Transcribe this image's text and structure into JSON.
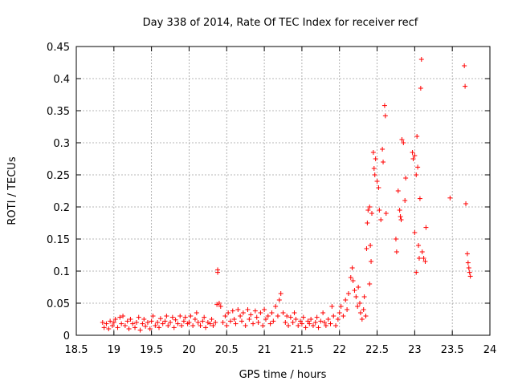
{
  "chart_data": {
    "type": "scatter",
    "title": "Day 338 of 2014, Rate Of TEC Index for receiver recf",
    "xlabel": "GPS time / hours",
    "ylabel": "ROTI / TECUs",
    "xlim": [
      18.5,
      24
    ],
    "ylim": [
      0,
      0.45
    ],
    "x_ticks": [
      "18.5",
      "19",
      "19.5",
      "20",
      "20.5",
      "21",
      "21.5",
      "22",
      "22.5",
      "23",
      "23.5",
      "24"
    ],
    "y_ticks": [
      "0",
      "0.05",
      "0.1",
      "0.15",
      "0.2",
      "0.25",
      "0.3",
      "0.35",
      "0.4",
      "0.45"
    ],
    "grid": true,
    "marker": "plus",
    "color": "#ff0000",
    "series": [
      {
        "name": "ROTI",
        "points": [
          [
            18.85,
            0.02
          ],
          [
            18.87,
            0.012
          ],
          [
            18.9,
            0.018
          ],
          [
            18.93,
            0.01
          ],
          [
            18.95,
            0.022
          ],
          [
            18.98,
            0.015
          ],
          [
            19.0,
            0.02
          ],
          [
            19.02,
            0.025
          ],
          [
            19.05,
            0.012
          ],
          [
            19.08,
            0.028
          ],
          [
            19.1,
            0.018
          ],
          [
            19.12,
            0.03
          ],
          [
            19.15,
            0.015
          ],
          [
            19.18,
            0.022
          ],
          [
            19.2,
            0.01
          ],
          [
            19.22,
            0.025
          ],
          [
            19.25,
            0.018
          ],
          [
            19.28,
            0.012
          ],
          [
            19.3,
            0.02
          ],
          [
            19.33,
            0.028
          ],
          [
            19.35,
            0.008
          ],
          [
            19.38,
            0.018
          ],
          [
            19.4,
            0.025
          ],
          [
            19.42,
            0.014
          ],
          [
            19.45,
            0.02
          ],
          [
            19.48,
            0.01
          ],
          [
            19.5,
            0.022
          ],
          [
            19.52,
            0.03
          ],
          [
            19.55,
            0.015
          ],
          [
            19.58,
            0.02
          ],
          [
            19.6,
            0.012
          ],
          [
            19.62,
            0.026
          ],
          [
            19.65,
            0.018
          ],
          [
            19.68,
            0.022
          ],
          [
            19.7,
            0.03
          ],
          [
            19.72,
            0.015
          ],
          [
            19.75,
            0.02
          ],
          [
            19.78,
            0.028
          ],
          [
            19.8,
            0.012
          ],
          [
            19.82,
            0.024
          ],
          [
            19.85,
            0.018
          ],
          [
            19.88,
            0.03
          ],
          [
            19.9,
            0.015
          ],
          [
            19.93,
            0.022
          ],
          [
            19.95,
            0.028
          ],
          [
            19.98,
            0.018
          ],
          [
            20.0,
            0.02
          ],
          [
            20.02,
            0.03
          ],
          [
            20.05,
            0.015
          ],
          [
            20.08,
            0.025
          ],
          [
            20.1,
            0.035
          ],
          [
            20.12,
            0.02
          ],
          [
            20.15,
            0.015
          ],
          [
            20.18,
            0.022
          ],
          [
            20.2,
            0.028
          ],
          [
            20.22,
            0.012
          ],
          [
            20.25,
            0.02
          ],
          [
            20.28,
            0.018
          ],
          [
            20.3,
            0.025
          ],
          [
            20.32,
            0.015
          ],
          [
            20.35,
            0.02
          ],
          [
            20.37,
            0.048
          ],
          [
            20.38,
            0.102
          ],
          [
            20.38,
            0.098
          ],
          [
            20.4,
            0.05
          ],
          [
            20.42,
            0.045
          ],
          [
            20.45,
            0.02
          ],
          [
            20.48,
            0.03
          ],
          [
            20.5,
            0.015
          ],
          [
            20.52,
            0.035
          ],
          [
            20.55,
            0.022
          ],
          [
            20.58,
            0.038
          ],
          [
            20.6,
            0.025
          ],
          [
            20.62,
            0.018
          ],
          [
            20.65,
            0.04
          ],
          [
            20.68,
            0.03
          ],
          [
            20.7,
            0.022
          ],
          [
            20.72,
            0.035
          ],
          [
            20.75,
            0.015
          ],
          [
            20.78,
            0.04
          ],
          [
            20.8,
            0.025
          ],
          [
            20.82,
            0.032
          ],
          [
            20.85,
            0.018
          ],
          [
            20.88,
            0.038
          ],
          [
            20.9,
            0.028
          ],
          [
            20.92,
            0.02
          ],
          [
            20.95,
            0.035
          ],
          [
            20.98,
            0.015
          ],
          [
            21.0,
            0.04
          ],
          [
            21.02,
            0.025
          ],
          [
            21.05,
            0.03
          ],
          [
            21.08,
            0.018
          ],
          [
            21.1,
            0.035
          ],
          [
            21.12,
            0.022
          ],
          [
            21.15,
            0.045
          ],
          [
            21.18,
            0.03
          ],
          [
            21.2,
            0.055
          ],
          [
            21.22,
            0.065
          ],
          [
            21.25,
            0.035
          ],
          [
            21.28,
            0.02
          ],
          [
            21.3,
            0.03
          ],
          [
            21.32,
            0.015
          ],
          [
            21.35,
            0.028
          ],
          [
            21.38,
            0.02
          ],
          [
            21.4,
            0.035
          ],
          [
            21.42,
            0.025
          ],
          [
            21.45,
            0.015
          ],
          [
            21.48,
            0.022
          ],
          [
            21.5,
            0.018
          ],
          [
            21.52,
            0.028
          ],
          [
            21.55,
            0.012
          ],
          [
            21.58,
            0.022
          ],
          [
            21.6,
            0.018
          ],
          [
            21.62,
            0.025
          ],
          [
            21.65,
            0.015
          ],
          [
            21.68,
            0.02
          ],
          [
            21.7,
            0.028
          ],
          [
            21.72,
            0.012
          ],
          [
            21.75,
            0.022
          ],
          [
            21.78,
            0.035
          ],
          [
            21.8,
            0.02
          ],
          [
            21.82,
            0.015
          ],
          [
            21.85,
            0.025
          ],
          [
            21.88,
            0.018
          ],
          [
            21.9,
            0.045
          ],
          [
            21.92,
            0.03
          ],
          [
            21.95,
            0.015
          ],
          [
            21.98,
            0.025
          ],
          [
            22.0,
            0.035
          ],
          [
            22.02,
            0.045
          ],
          [
            22.05,
            0.03
          ],
          [
            22.08,
            0.055
          ],
          [
            22.1,
            0.04
          ],
          [
            22.12,
            0.065
          ],
          [
            22.15,
            0.09
          ],
          [
            22.17,
            0.105
          ],
          [
            22.18,
            0.085
          ],
          [
            22.2,
            0.07
          ],
          [
            22.22,
            0.06
          ],
          [
            22.24,
            0.045
          ],
          [
            22.25,
            0.075
          ],
          [
            22.27,
            0.05
          ],
          [
            22.28,
            0.035
          ],
          [
            22.3,
            0.025
          ],
          [
            22.32,
            0.04
          ],
          [
            22.33,
            0.06
          ],
          [
            22.35,
            0.03
          ],
          [
            22.36,
            0.135
          ],
          [
            22.37,
            0.175
          ],
          [
            22.38,
            0.195
          ],
          [
            22.4,
            0.2
          ],
          [
            22.4,
            0.08
          ],
          [
            22.41,
            0.14
          ],
          [
            22.42,
            0.115
          ],
          [
            22.43,
            0.19
          ],
          [
            22.45,
            0.285
          ],
          [
            22.46,
            0.26
          ],
          [
            22.47,
            0.25
          ],
          [
            22.48,
            0.275
          ],
          [
            22.5,
            0.24
          ],
          [
            22.52,
            0.23
          ],
          [
            22.53,
            0.195
          ],
          [
            22.55,
            0.18
          ],
          [
            22.57,
            0.29
          ],
          [
            22.58,
            0.27
          ],
          [
            22.6,
            0.358
          ],
          [
            22.61,
            0.342
          ],
          [
            22.62,
            0.19
          ],
          [
            22.75,
            0.15
          ],
          [
            22.76,
            0.13
          ],
          [
            22.78,
            0.225
          ],
          [
            22.8,
            0.195
          ],
          [
            22.81,
            0.185
          ],
          [
            22.82,
            0.18
          ],
          [
            22.83,
            0.305
          ],
          [
            22.85,
            0.3
          ],
          [
            22.87,
            0.21
          ],
          [
            22.88,
            0.245
          ],
          [
            22.97,
            0.285
          ],
          [
            22.98,
            0.275
          ],
          [
            23.0,
            0.28
          ],
          [
            23.02,
            0.25
          ],
          [
            23.03,
            0.31
          ],
          [
            23.05,
            0.14
          ],
          [
            23.06,
            0.12
          ],
          [
            23.07,
            0.213
          ],
          [
            23.08,
            0.385
          ],
          [
            23.09,
            0.43
          ],
          [
            23.1,
            0.13
          ],
          [
            23.12,
            0.12
          ],
          [
            23.14,
            0.115
          ],
          [
            23.15,
            0.168
          ],
          [
            23.0,
            0.16
          ],
          [
            23.02,
            0.098
          ],
          [
            23.04,
            0.262
          ],
          [
            23.47,
            0.214
          ],
          [
            23.66,
            0.42
          ],
          [
            23.67,
            0.388
          ],
          [
            23.68,
            0.205
          ],
          [
            23.7,
            0.127
          ],
          [
            23.71,
            0.113
          ],
          [
            23.72,
            0.105
          ],
          [
            23.73,
            0.098
          ],
          [
            23.74,
            0.092
          ]
        ]
      }
    ]
  }
}
